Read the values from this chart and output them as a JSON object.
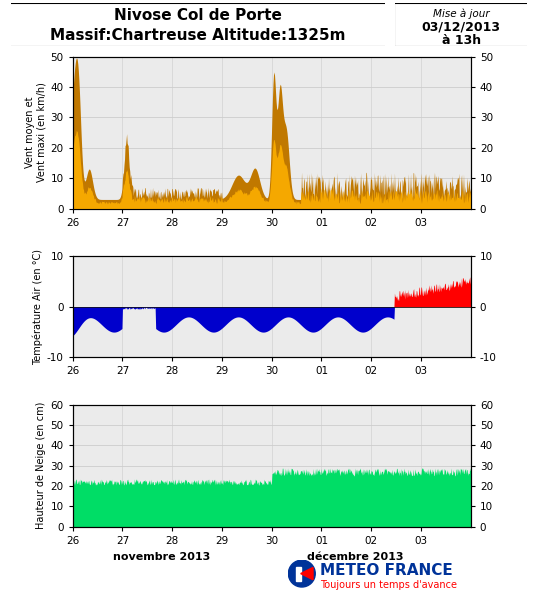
{
  "title_line1": "Nivose Col de Porte",
  "title_line2": "Massif:Chartreuse Altitude:1325m",
  "update_label": "Mise à jour",
  "update_date": "03/12/2013",
  "update_time": "à 13h",
  "x_ticks": [
    0,
    24,
    48,
    72,
    96,
    120,
    144,
    168,
    192
  ],
  "x_tick_labels": [
    "26",
    "27",
    "28",
    "29",
    "30",
    "01",
    "02",
    "03"
  ],
  "xlabel_nov": "novembre 2013",
  "xlabel_dec": "décembre 2013",
  "wind_ylabel": "Vent moyen et\nVent maxi (en km/h)",
  "wind_ylim": [
    0,
    50
  ],
  "wind_yticks": [
    0,
    10,
    20,
    30,
    40,
    50
  ],
  "wind_color_light": "#F5A800",
  "wind_color_dark": "#C07800",
  "temp_ylabel": "Température Air (en °C)",
  "temp_ylim": [
    -10,
    10
  ],
  "temp_yticks": [
    -10,
    0,
    10
  ],
  "temp_color_neg": "#0000CC",
  "temp_color_pos": "#FF0000",
  "snow_ylabel": "Hauteur de Neige (en cm)",
  "snow_ylim": [
    0,
    60
  ],
  "snow_yticks": [
    0,
    10,
    20,
    30,
    40,
    50,
    60
  ],
  "snow_color": "#00DD66",
  "bg_color": "#EBEBEB",
  "grid_color": "#CCCCCC",
  "meteo_france_text": "METEO FRANCE",
  "meteo_france_sub": "Toujours un temps d'avance",
  "meteo_france_color": "#003399",
  "meteo_france_sub_color": "#FF0000"
}
